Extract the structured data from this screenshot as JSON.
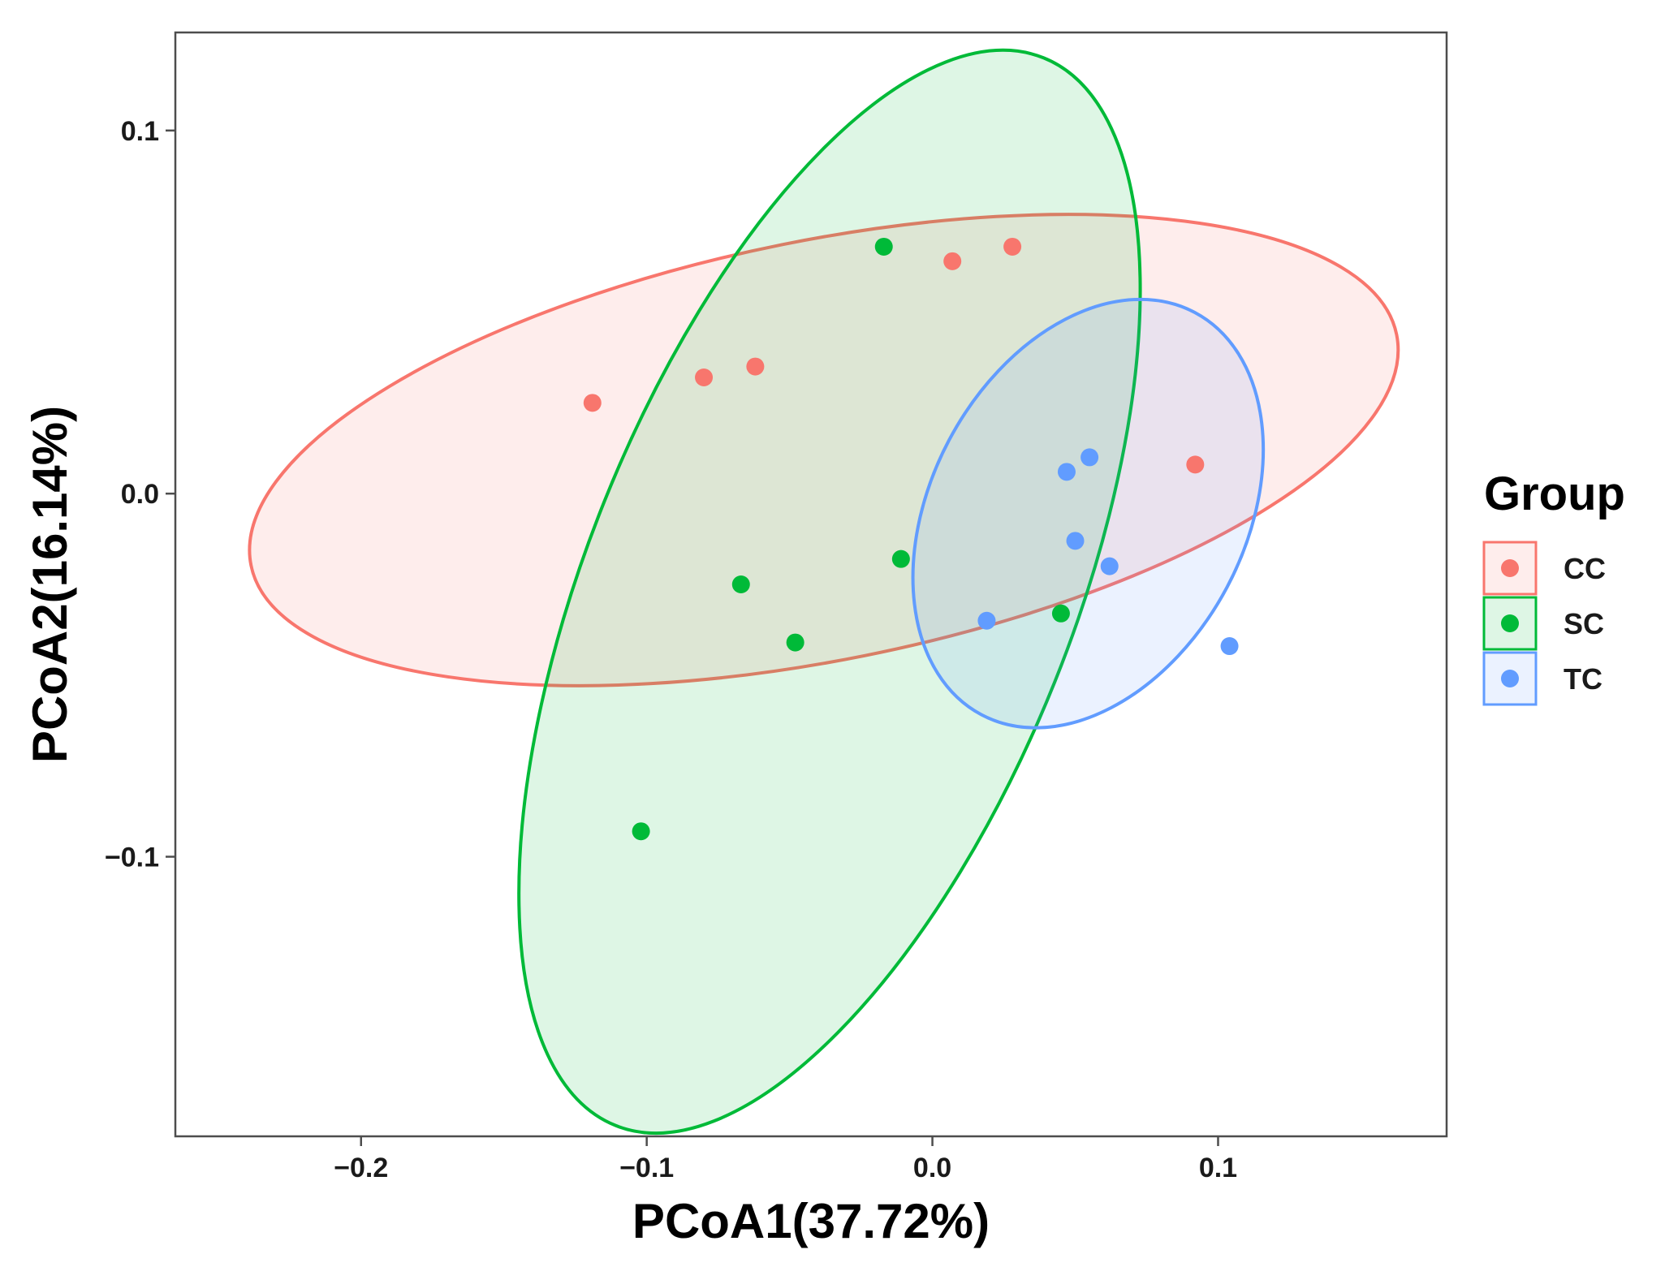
{
  "chart_data": {
    "type": "scatter",
    "title": "",
    "xlabel": "PCoA1(37.72%)",
    "ylabel": "PCoA2(16.14%)",
    "xlim": [
      -0.265,
      0.18
    ],
    "ylim": [
      -0.177,
      0.127
    ],
    "x_ticks": [
      -0.2,
      -0.1,
      0.0,
      0.1
    ],
    "x_tick_labels": [
      "−0.2",
      "−0.1",
      "0.0",
      "0.1"
    ],
    "y_ticks": [
      0.1,
      0.0,
      -0.1
    ],
    "y_tick_labels": [
      "0.1",
      "0.0",
      "−0.1"
    ],
    "grid": false,
    "legend": {
      "title": "Group",
      "position": "right",
      "entries": [
        "CC",
        "SC",
        "TC"
      ]
    },
    "series": [
      {
        "name": "CC",
        "color": "#F8766D",
        "points": [
          {
            "x": -0.119,
            "y": 0.025
          },
          {
            "x": -0.08,
            "y": 0.032
          },
          {
            "x": -0.062,
            "y": 0.035
          },
          {
            "x": 0.007,
            "y": 0.064
          },
          {
            "x": 0.028,
            "y": 0.068
          },
          {
            "x": 0.092,
            "y": 0.008
          }
        ],
        "ellipse": {
          "cx": -0.038,
          "cy": 0.012,
          "rx": 0.203,
          "ry": 0.058,
          "angle_deg": 9
        }
      },
      {
        "name": "SC",
        "color": "#00BA38",
        "points": [
          {
            "x": -0.017,
            "y": 0.068
          },
          {
            "x": -0.011,
            "y": -0.018
          },
          {
            "x": -0.067,
            "y": -0.025
          },
          {
            "x": -0.048,
            "y": -0.041
          },
          {
            "x": 0.045,
            "y": -0.033
          },
          {
            "x": -0.102,
            "y": -0.093
          }
        ],
        "ellipse": {
          "cx": -0.036,
          "cy": -0.027,
          "rx": 0.165,
          "ry": 0.08,
          "angle_deg": 63
        }
      },
      {
        "name": "TC",
        "color": "#619CFF",
        "points": [
          {
            "x": 0.055,
            "y": 0.01
          },
          {
            "x": 0.047,
            "y": 0.006
          },
          {
            "x": 0.05,
            "y": -0.013
          },
          {
            "x": 0.062,
            "y": -0.02
          },
          {
            "x": 0.019,
            "y": -0.035
          },
          {
            "x": 0.104,
            "y": -0.042
          }
        ],
        "ellipse": {
          "cx": 0.0545,
          "cy": -0.0055,
          "rx": 0.0668,
          "ry": 0.0504,
          "angle_deg": 56
        }
      }
    ]
  }
}
